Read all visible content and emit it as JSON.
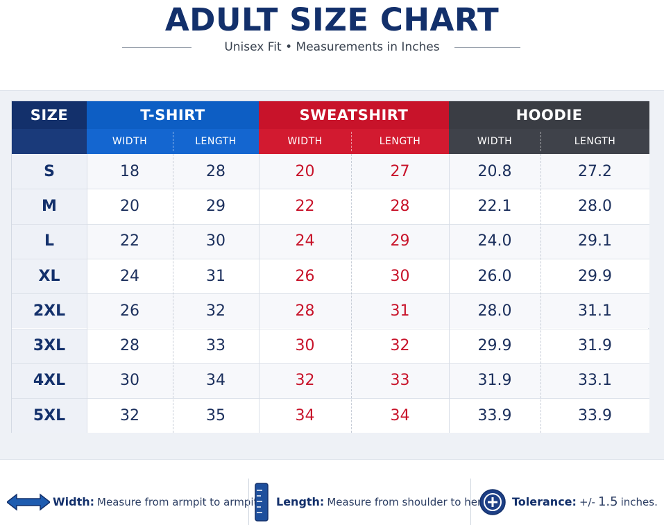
{
  "header": {
    "title": "ADULT SIZE CHART",
    "subtitle": "Unisex Fit • Measurements in Inches"
  },
  "table": {
    "size_label": "SIZE",
    "groups": [
      {
        "name": "T-SHIRT",
        "color": "#0d5ec4",
        "sub_color": "#1466d0",
        "value_color": "#1b2f5c"
      },
      {
        "name": "SWEATSHIRT",
        "color": "#c8132a",
        "sub_color": "#d21a30",
        "value_color": "#c8132a"
      },
      {
        "name": "HOODIE",
        "color": "#3a3d44",
        "sub_color": "#3f424a",
        "value_color": "#1b2f5c"
      }
    ],
    "sub_headers": [
      "WIDTH",
      "LENGTH",
      "WIDTH",
      "LENGTH",
      "WIDTH",
      "LENGTH"
    ],
    "size_header_color": "#13306b",
    "rows": [
      {
        "size": "S",
        "values": [
          "18",
          "28",
          "20",
          "27",
          "20.8",
          "27.2"
        ]
      },
      {
        "size": "M",
        "values": [
          "20",
          "29",
          "22",
          "28",
          "22.1",
          "28.0"
        ]
      },
      {
        "size": "L",
        "values": [
          "22",
          "30",
          "24",
          "29",
          "24.0",
          "29.1"
        ]
      },
      {
        "size": "XL",
        "values": [
          "24",
          "31",
          "26",
          "30",
          "26.0",
          "29.9"
        ]
      },
      {
        "size": "2XL",
        "values": [
          "26",
          "32",
          "28",
          "31",
          "28.0",
          "31.1"
        ]
      },
      {
        "size": "3XL",
        "values": [
          "28",
          "33",
          "30",
          "32",
          "29.9",
          "31.9"
        ]
      },
      {
        "size": "4XL",
        "values": [
          "30",
          "34",
          "32",
          "33",
          "31.9",
          "33.1"
        ]
      },
      {
        "size": "5XL",
        "values": [
          "32",
          "35",
          "34",
          "34",
          "33.9",
          "33.9"
        ]
      }
    ]
  },
  "footer": {
    "width": {
      "icon": "double-arrow-icon",
      "label": "Width:",
      "text": "Measure from armpit to armpit."
    },
    "length": {
      "icon": "measuring-tape-icon",
      "label": "Length:",
      "text": "Measure from shoulder to hem."
    },
    "tolerance": {
      "icon": "plus-circle-icon",
      "label": "Tolerance:",
      "prefix": "+/-",
      "value": "1.5",
      "unit": "inches."
    }
  }
}
